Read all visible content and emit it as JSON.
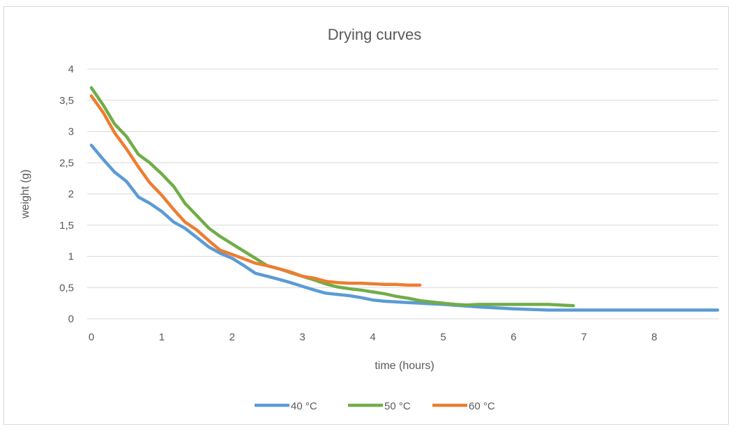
{
  "chart_data": {
    "type": "line",
    "title": "Drying curves",
    "xlabel": "time (hours)",
    "ylabel": "weight (g)",
    "xlim": [
      0,
      8.9
    ],
    "ylim": [
      0,
      4
    ],
    "x_ticks": [
      0,
      1,
      2,
      3,
      4,
      5,
      6,
      7,
      8
    ],
    "x_tick_labels": [
      "0",
      "1",
      "2",
      "3",
      "4",
      "5",
      "6",
      "7",
      "8"
    ],
    "y_ticks": [
      0,
      0.5,
      1,
      1.5,
      2,
      2.5,
      3,
      3.5,
      4
    ],
    "y_tick_labels": [
      "0",
      "0,5",
      "1",
      "1,5",
      "2",
      "2,5",
      "3",
      "3,5",
      "4"
    ],
    "grid": "horizontal",
    "legend_position": "bottom",
    "series": [
      {
        "name": "40 °C",
        "color": "#5b9bd5",
        "x": [
          0,
          0.17,
          0.33,
          0.5,
          0.67,
          0.83,
          1.0,
          1.17,
          1.33,
          1.5,
          1.67,
          1.83,
          2.0,
          2.17,
          2.33,
          2.5,
          2.67,
          2.83,
          3.0,
          3.17,
          3.33,
          3.5,
          3.67,
          3.83,
          4.0,
          4.17,
          4.33,
          4.5,
          4.67,
          4.83,
          5.0,
          5.5,
          6.0,
          6.5,
          7.0,
          7.5,
          8.0,
          8.5,
          8.9
        ],
        "y": [
          2.78,
          2.55,
          2.35,
          2.2,
          1.95,
          1.85,
          1.72,
          1.55,
          1.45,
          1.3,
          1.15,
          1.05,
          0.97,
          0.85,
          0.73,
          0.68,
          0.63,
          0.58,
          0.52,
          0.46,
          0.41,
          0.39,
          0.37,
          0.34,
          0.3,
          0.28,
          0.27,
          0.26,
          0.25,
          0.24,
          0.23,
          0.19,
          0.16,
          0.14,
          0.14,
          0.14,
          0.14,
          0.14,
          0.14
        ]
      },
      {
        "name": "50 °C",
        "color": "#70ad47",
        "x": [
          0,
          0.17,
          0.33,
          0.5,
          0.67,
          0.83,
          1.0,
          1.17,
          1.33,
          1.5,
          1.67,
          1.83,
          2.0,
          2.17,
          2.33,
          2.5,
          2.67,
          2.83,
          3.0,
          3.17,
          3.33,
          3.5,
          3.67,
          3.83,
          4.0,
          4.17,
          4.33,
          4.5,
          4.67,
          4.83,
          5.0,
          5.17,
          5.33,
          5.5,
          6.0,
          6.5,
          6.85
        ],
        "y": [
          3.7,
          3.42,
          3.12,
          2.92,
          2.63,
          2.5,
          2.32,
          2.12,
          1.85,
          1.65,
          1.45,
          1.32,
          1.2,
          1.08,
          0.97,
          0.85,
          0.8,
          0.74,
          0.68,
          0.62,
          0.56,
          0.51,
          0.48,
          0.46,
          0.43,
          0.4,
          0.36,
          0.33,
          0.29,
          0.27,
          0.25,
          0.23,
          0.22,
          0.23,
          0.23,
          0.23,
          0.21
        ]
      },
      {
        "name": "60 °C",
        "color": "#ed7d31",
        "x": [
          0,
          0.17,
          0.33,
          0.5,
          0.67,
          0.83,
          1.0,
          1.17,
          1.33,
          1.5,
          1.67,
          1.83,
          2.0,
          2.17,
          2.33,
          2.5,
          2.67,
          2.83,
          3.0,
          3.17,
          3.33,
          3.5,
          3.67,
          3.83,
          4.0,
          4.17,
          4.33,
          4.5,
          4.67
        ],
        "y": [
          3.57,
          3.3,
          2.98,
          2.72,
          2.43,
          2.18,
          1.98,
          1.75,
          1.55,
          1.42,
          1.25,
          1.1,
          1.03,
          0.96,
          0.89,
          0.85,
          0.8,
          0.75,
          0.68,
          0.65,
          0.6,
          0.58,
          0.57,
          0.57,
          0.56,
          0.55,
          0.55,
          0.54,
          0.54
        ]
      }
    ]
  }
}
